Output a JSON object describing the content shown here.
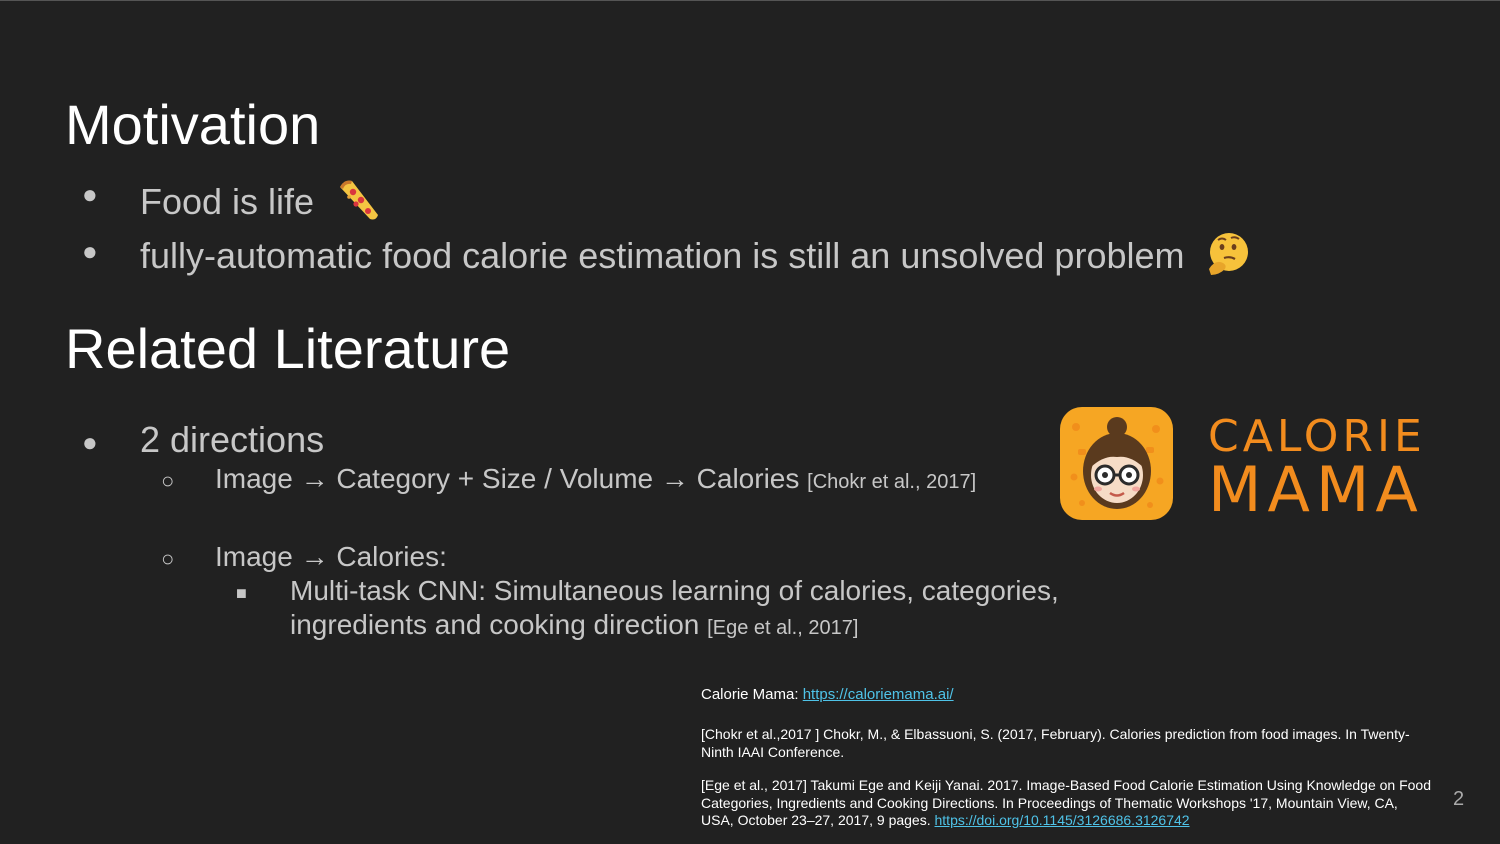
{
  "motivation": {
    "title": "Motivation",
    "bullets": [
      {
        "text": "Food is life",
        "emoji": "pizza-emoji"
      },
      {
        "text": "fully-automatic food calorie estimation is still an unsolved problem",
        "emoji": "thinking-face-emoji"
      }
    ]
  },
  "related": {
    "title": "Related Literature",
    "bullet": "2 directions",
    "direction1": {
      "text": "Image → Category + Size / Volume → Calories",
      "cite": "[Chokr et al., 2017]"
    },
    "direction2": {
      "text": "Image → Calories:",
      "sub_line1": "Multi-task CNN: Simultaneous learning of calories, categories,",
      "sub_line2": "ingredients and cooking direction",
      "sub_cite": "[Ege et al., 2017]"
    }
  },
  "logo": {
    "line1": "CALORIE",
    "line2": "MAMA",
    "brand_color": "#f28c1e"
  },
  "references": {
    "calorie_mama_label": "Calorie Mama: ",
    "calorie_mama_url": "https://caloriemama.ai/",
    "chokr": "[Chokr et al.,2017 ] Chokr, M., & Elbassuoni, S. (2017, February). Calories prediction from food images. In Twenty-Ninth IAAI Conference.",
    "ege_text": "[Ege et al., 2017] Takumi Ege and Keiji Yanai. 2017. Image-Based Food Calorie Estimation Using Knowledge on Food Categories, Ingredients and Cooking Directions. In Proceedings of Thematic Workshops '17, Mountain View, CA, USA, October 23–27, 2017, 9 pages. ",
    "ege_url": "https://doi.org/10.1145/3126686.3126742"
  },
  "page_number": "2",
  "colors": {
    "background": "#212121",
    "title": "#ffffff",
    "body": "#c7c7c7",
    "link": "#4fc3e8"
  }
}
